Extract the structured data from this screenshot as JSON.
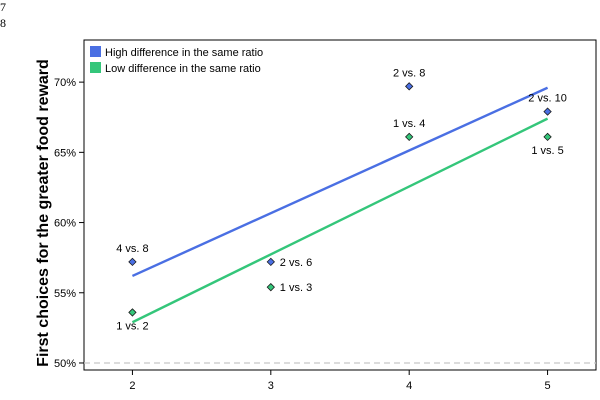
{
  "line_numbers": [
    "7",
    "8"
  ],
  "chart_data": {
    "type": "scatter",
    "xlabel": "",
    "ylabel": "First choices for the greater food reward",
    "xlim": [
      1.65,
      5.35
    ],
    "ylim": [
      49.5,
      73.0
    ],
    "x_ticks": [
      2,
      3,
      4,
      5
    ],
    "x_tick_labels": [
      "2",
      "3",
      "4",
      "5"
    ],
    "y_ticks": [
      50,
      55,
      60,
      65,
      70
    ],
    "y_tick_labels": [
      "50%",
      "55%",
      "60%",
      "65%",
      "70%"
    ],
    "reference_line": {
      "y": 50,
      "style": "dashed",
      "color": "#c8c8c8"
    },
    "grid": false,
    "legend_position": "top-left",
    "series": [
      {
        "name": "High difference in the same ratio",
        "color": "#4a6fe3",
        "points": [
          {
            "x": 2,
            "y": 57.2,
            "label": "4 vs. 8",
            "label_pos": "above"
          },
          {
            "x": 3,
            "y": 57.2,
            "label": "2 vs. 6",
            "label_pos": "right"
          },
          {
            "x": 4,
            "y": 69.7,
            "label": "2 vs. 8",
            "label_pos": "above"
          },
          {
            "x": 5,
            "y": 67.9,
            "label": "2 vs. 10",
            "label_pos": "above"
          }
        ],
        "fit_line": {
          "x": [
            2,
            5
          ],
          "y": [
            56.2,
            69.6
          ]
        }
      },
      {
        "name": "Low difference in the same ratio",
        "color": "#34c67a",
        "points": [
          {
            "x": 2,
            "y": 53.6,
            "label": "1 vs. 2",
            "label_pos": "below"
          },
          {
            "x": 3,
            "y": 55.4,
            "label": "1 vs. 3",
            "label_pos": "right"
          },
          {
            "x": 4,
            "y": 66.1,
            "label": "1 vs. 4",
            "label_pos": "above"
          },
          {
            "x": 5,
            "y": 66.1,
            "label": "1 vs. 5",
            "label_pos": "below"
          }
        ],
        "fit_line": {
          "x": [
            2,
            5
          ],
          "y": [
            52.9,
            67.4
          ]
        }
      }
    ]
  }
}
